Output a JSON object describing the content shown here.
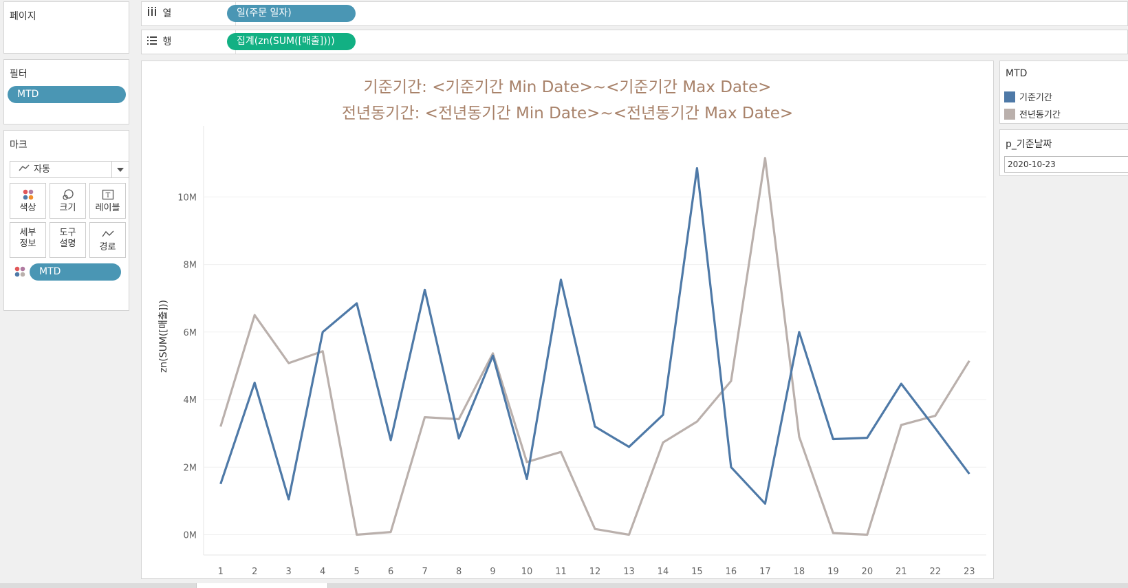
{
  "pages_panel": {
    "title": "페이지"
  },
  "columns_shelf": {
    "label": "열",
    "icon": "columns-icon",
    "pill": "일(주문 일자)"
  },
  "rows_shelf": {
    "label": "행",
    "icon": "rows-icon",
    "pill": "집계(zn(SUM([매출])))"
  },
  "filters_panel": {
    "title": "필터",
    "pill": "MTD"
  },
  "marks_panel": {
    "title": "마크",
    "type_dropdown": "자동",
    "buttons": [
      {
        "label": "색상",
        "icon": "color-dots-icon"
      },
      {
        "label": "크기",
        "icon": "size-circles-icon"
      },
      {
        "label": "레이블",
        "icon": "label-t-icon"
      },
      {
        "label": "세부\n정보",
        "line1": "세부",
        "line2": "정보",
        "icon": "detail-dots-icon"
      },
      {
        "label": "도구\n설명",
        "line1": "도구",
        "line2": "설명",
        "icon": "tooltip-icon"
      },
      {
        "label": "경로",
        "icon": "path-icon"
      }
    ],
    "color_pill": "MTD"
  },
  "legend": {
    "title": "MTD",
    "items": [
      {
        "label": "기준기간",
        "color": "#4e79a7"
      },
      {
        "label": "전년동기간",
        "color": "#bab0ac"
      }
    ]
  },
  "parameter": {
    "title": "p_기준날짜",
    "value": "2020-10-23"
  },
  "chart_data": {
    "type": "line",
    "title": "기준기간: <기준기간 Min Date>~<기준기간 Max Date>",
    "subtitle": "전년동기간: <전년동기간 Min Date>~<전년동기간 Max Date>",
    "xlabel": "",
    "ylabel": "zn(SUM([매출]))",
    "x": [
      1,
      2,
      3,
      4,
      5,
      6,
      7,
      8,
      9,
      10,
      11,
      12,
      13,
      14,
      15,
      16,
      17,
      18,
      19,
      20,
      21,
      22,
      23
    ],
    "ylim": [
      -0.6,
      11.9
    ],
    "yticks": [
      0,
      2,
      4,
      6,
      8,
      10
    ],
    "ytick_labels": [
      "0M",
      "2M",
      "4M",
      "6M",
      "8M",
      "10M"
    ],
    "grid": true,
    "series": [
      {
        "name": "기준기간",
        "color": "#4e79a7",
        "values": [
          1.5,
          4.5,
          1.05,
          6.0,
          6.85,
          2.8,
          7.25,
          2.85,
          5.3,
          1.65,
          7.55,
          3.2,
          2.6,
          3.55,
          10.85,
          2.0,
          0.92,
          6.0,
          2.83,
          2.87,
          4.47,
          3.15,
          1.8
        ]
      },
      {
        "name": "전년동기간",
        "color": "#bab0ac",
        "values": [
          3.2,
          6.5,
          5.08,
          5.43,
          0.0,
          0.08,
          3.48,
          3.42,
          5.37,
          2.15,
          2.45,
          0.17,
          0.0,
          2.73,
          3.35,
          4.55,
          11.15,
          2.9,
          0.05,
          0.0,
          3.25,
          3.52,
          5.15
        ]
      }
    ]
  }
}
